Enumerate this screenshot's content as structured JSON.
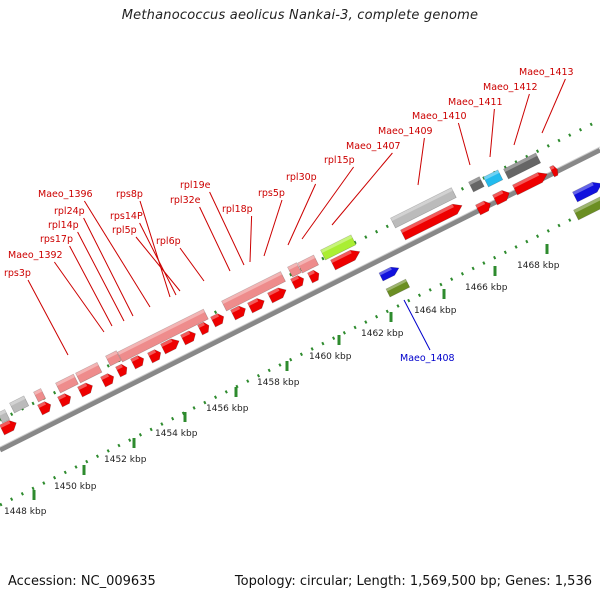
{
  "title": "Methanococcus aeolicus Nankai-3, complete genome",
  "footer": {
    "accession": "Accession: NC_009635",
    "summary": "Topology: circular; Length: 1,569,500 bp; Genes: 1,536"
  },
  "ruler": {
    "labels": [
      "1448 kbp",
      "1450 kbp",
      "1452 kbp",
      "1454 kbp",
      "1456 kbp",
      "1458 kbp",
      "1460 kbp",
      "1462 kbp",
      "1464 kbp",
      "1466 kbp",
      "1468 kbp"
    ]
  },
  "gene_labels": {
    "top": [
      "rps3p",
      "Maeo_1392",
      "rps17p",
      "rpl14p",
      "rpl24p",
      "Maeo_1396",
      "rps8p",
      "rps14P",
      "rpl5p",
      "rpl6p",
      "rpl32e",
      "rpl19e",
      "rpl18p",
      "rps5p",
      "rpl30p",
      "rpl15p",
      "Maeo_1407",
      "Maeo_1409",
      "Maeo_1410",
      "Maeo_1411",
      "Maeo_1412",
      "Maeo_1413"
    ],
    "bottom": [
      "Maeo_1408"
    ]
  },
  "colors": {
    "label_top": "#cc0000",
    "label_bottom": "#0000cc",
    "gene_red": "#ee0000",
    "gene_pink": "#ee8c8c",
    "gene_grey": "#bbbbbb",
    "gene_dark": "#666666",
    "gene_cyan": "#22bbee",
    "gene_lime": "#aaee33",
    "gene_blue": "#1111dd",
    "gene_olive": "#6b8e23",
    "tick": "#2e8b2e",
    "backbone": "#888888"
  }
}
